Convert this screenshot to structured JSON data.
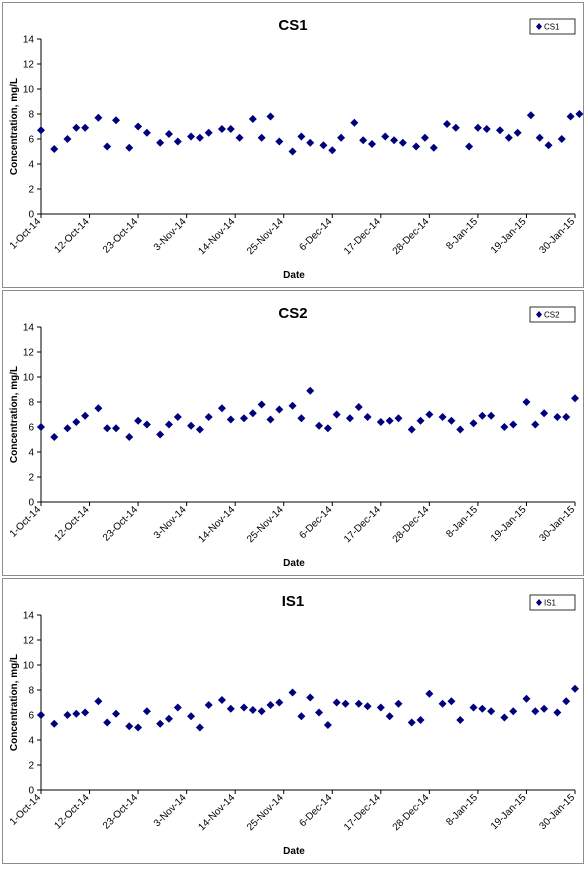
{
  "colors": {
    "marker": "#00007f",
    "axis": "#000000",
    "border": "#8c8c8c"
  },
  "chart_data": [
    {
      "type": "scatter",
      "title": "CS1",
      "xlabel": "Date",
      "ylabel": "Concentration, mg/L",
      "ylim": [
        0,
        14
      ],
      "yticks": [
        "0",
        "2",
        "4",
        "6",
        "8",
        "10",
        "12",
        "14"
      ],
      "xticks": [
        "1-Oct-14",
        "12-Oct-14",
        "23-Oct-14",
        "3-Nov-14",
        "14-Nov-14",
        "25-Nov-14",
        "6-Dec-14",
        "17-Dec-14",
        "28-Dec-14",
        "8-Jan-15",
        "19-Jan-15",
        "30-Jan-15"
      ],
      "xlim": [
        "2014-10-01",
        "2015-01-30"
      ],
      "grid": false,
      "legend_position": "top-right",
      "series": [
        {
          "name": "CS1",
          "marker": "diamond",
          "x": [
            "2014-10-01",
            "2014-10-04",
            "2014-10-07",
            "2014-10-09",
            "2014-10-11",
            "2014-10-14",
            "2014-10-16",
            "2014-10-18",
            "2014-10-21",
            "2014-10-23",
            "2014-10-25",
            "2014-10-28",
            "2014-10-30",
            "2014-11-01",
            "2014-11-04",
            "2014-11-06",
            "2014-11-08",
            "2014-11-11",
            "2014-11-13",
            "2014-11-15",
            "2014-11-18",
            "2014-11-20",
            "2014-11-22",
            "2014-11-24",
            "2014-11-27",
            "2014-11-29",
            "2014-12-01",
            "2014-12-04",
            "2014-12-06",
            "2014-12-08",
            "2014-12-11",
            "2014-12-13",
            "2014-12-15",
            "2014-12-18",
            "2014-12-20",
            "2014-12-22",
            "2014-12-25",
            "2014-12-27",
            "2014-12-29",
            "2015-01-01",
            "2015-01-03",
            "2015-01-06",
            "2015-01-08",
            "2015-01-10",
            "2015-01-13",
            "2015-01-15",
            "2015-01-17",
            "2015-01-20",
            "2015-01-22",
            "2015-01-24",
            "2015-01-27",
            "2015-01-29",
            "2015-01-31"
          ],
          "y": [
            6.7,
            5.2,
            6.0,
            6.9,
            6.9,
            7.7,
            5.4,
            7.5,
            5.3,
            7.0,
            6.5,
            5.7,
            6.4,
            5.8,
            6.2,
            6.1,
            6.5,
            6.8,
            6.8,
            6.1,
            7.6,
            6.1,
            7.8,
            5.8,
            5.0,
            6.2,
            5.7,
            5.5,
            5.1,
            6.1,
            7.3,
            5.9,
            5.6,
            6.2,
            5.9,
            5.7,
            5.4,
            6.1,
            5.3,
            7.2,
            6.9,
            5.4,
            6.9,
            6.8,
            6.7,
            6.1,
            6.5,
            7.9,
            6.1,
            5.5,
            6.0,
            7.8,
            8.0
          ]
        }
      ]
    },
    {
      "type": "scatter",
      "title": "CS2",
      "xlabel": "Date",
      "ylabel": "Concentration, mg/L",
      "ylim": [
        0,
        14
      ],
      "yticks": [
        "0",
        "2",
        "4",
        "6",
        "8",
        "10",
        "12",
        "14"
      ],
      "xticks": [
        "1-Oct-14",
        "12-Oct-14",
        "23-Oct-14",
        "3-Nov-14",
        "14-Nov-14",
        "25-Nov-14",
        "6-Dec-14",
        "17-Dec-14",
        "28-Dec-14",
        "8-Jan-15",
        "19-Jan-15",
        "30-Jan-15"
      ],
      "xlim": [
        "2014-10-01",
        "2015-01-30"
      ],
      "grid": false,
      "legend_position": "top-right",
      "series": [
        {
          "name": "CS2",
          "marker": "diamond",
          "x": [
            "2014-10-01",
            "2014-10-04",
            "2014-10-07",
            "2014-10-09",
            "2014-10-11",
            "2014-10-14",
            "2014-10-16",
            "2014-10-18",
            "2014-10-21",
            "2014-10-23",
            "2014-10-25",
            "2014-10-28",
            "2014-10-30",
            "2014-11-01",
            "2014-11-04",
            "2014-11-06",
            "2014-11-08",
            "2014-11-11",
            "2014-11-13",
            "2014-11-16",
            "2014-11-18",
            "2014-11-20",
            "2014-11-22",
            "2014-11-24",
            "2014-11-27",
            "2014-11-29",
            "2014-12-01",
            "2014-12-03",
            "2014-12-05",
            "2014-12-07",
            "2014-12-10",
            "2014-12-12",
            "2014-12-14",
            "2014-12-17",
            "2014-12-19",
            "2014-12-21",
            "2014-12-24",
            "2014-12-26",
            "2014-12-28",
            "2014-12-31",
            "2015-01-02",
            "2015-01-04",
            "2015-01-07",
            "2015-01-09",
            "2015-01-11",
            "2015-01-14",
            "2015-01-16",
            "2015-01-19",
            "2015-01-21",
            "2015-01-23",
            "2015-01-26",
            "2015-01-28",
            "2015-01-30"
          ],
          "y": [
            6.0,
            5.2,
            5.9,
            6.4,
            6.9,
            7.5,
            5.9,
            5.9,
            5.2,
            6.5,
            6.2,
            5.4,
            6.2,
            6.8,
            6.1,
            5.8,
            6.8,
            7.5,
            6.6,
            6.7,
            7.1,
            7.8,
            6.6,
            7.4,
            7.7,
            6.7,
            8.9,
            6.1,
            5.9,
            7.0,
            6.7,
            7.6,
            6.8,
            6.4,
            6.5,
            6.7,
            5.8,
            6.5,
            7.0,
            6.8,
            6.5,
            5.8,
            6.3,
            6.9,
            6.9,
            6.0,
            6.2,
            8.0,
            6.2,
            7.1,
            6.8,
            6.8,
            8.3
          ]
        }
      ]
    },
    {
      "type": "scatter",
      "title": "IS1",
      "xlabel": "Date",
      "ylabel": "Concentration, mg/L",
      "ylim": [
        0,
        14
      ],
      "yticks": [
        "0",
        "2",
        "4",
        "6",
        "8",
        "10",
        "12",
        "14"
      ],
      "xticks": [
        "1-Oct-14",
        "12-Oct-14",
        "23-Oct-14",
        "3-Nov-14",
        "14-Nov-14",
        "25-Nov-14",
        "6-Dec-14",
        "17-Dec-14",
        "28-Dec-14",
        "8-Jan-15",
        "19-Jan-15",
        "30-Jan-15"
      ],
      "xlim": [
        "2014-10-01",
        "2015-01-30"
      ],
      "grid": false,
      "legend_position": "top-right",
      "series": [
        {
          "name": "IS1",
          "marker": "diamond",
          "x": [
            "2014-10-01",
            "2014-10-04",
            "2014-10-07",
            "2014-10-09",
            "2014-10-11",
            "2014-10-14",
            "2014-10-16",
            "2014-10-18",
            "2014-10-21",
            "2014-10-23",
            "2014-10-25",
            "2014-10-28",
            "2014-10-30",
            "2014-11-01",
            "2014-11-04",
            "2014-11-06",
            "2014-11-08",
            "2014-11-11",
            "2014-11-13",
            "2014-11-16",
            "2014-11-18",
            "2014-11-20",
            "2014-11-22",
            "2014-11-24",
            "2014-11-27",
            "2014-11-29",
            "2014-12-01",
            "2014-12-03",
            "2014-12-05",
            "2014-12-07",
            "2014-12-09",
            "2014-12-12",
            "2014-12-14",
            "2014-12-17",
            "2014-12-19",
            "2014-12-21",
            "2014-12-24",
            "2014-12-26",
            "2014-12-28",
            "2014-12-31",
            "2015-01-02",
            "2015-01-04",
            "2015-01-07",
            "2015-01-09",
            "2015-01-11",
            "2015-01-14",
            "2015-01-16",
            "2015-01-19",
            "2015-01-21",
            "2015-01-23",
            "2015-01-26",
            "2015-01-28",
            "2015-01-30"
          ],
          "y": [
            6.0,
            5.3,
            6.0,
            6.1,
            6.2,
            7.1,
            5.4,
            6.1,
            5.1,
            5.0,
            6.3,
            5.3,
            5.7,
            6.6,
            5.9,
            5.0,
            6.8,
            7.2,
            6.5,
            6.6,
            6.4,
            6.3,
            6.8,
            7.0,
            7.8,
            5.9,
            7.4,
            6.2,
            5.2,
            7.0,
            6.9,
            6.9,
            6.7,
            6.6,
            5.9,
            6.9,
            5.4,
            5.6,
            7.7,
            6.9,
            7.1,
            5.6,
            6.6,
            6.5,
            6.3,
            5.8,
            6.3,
            7.3,
            6.3,
            6.5,
            6.2,
            7.1,
            8.1
          ]
        }
      ]
    }
  ]
}
